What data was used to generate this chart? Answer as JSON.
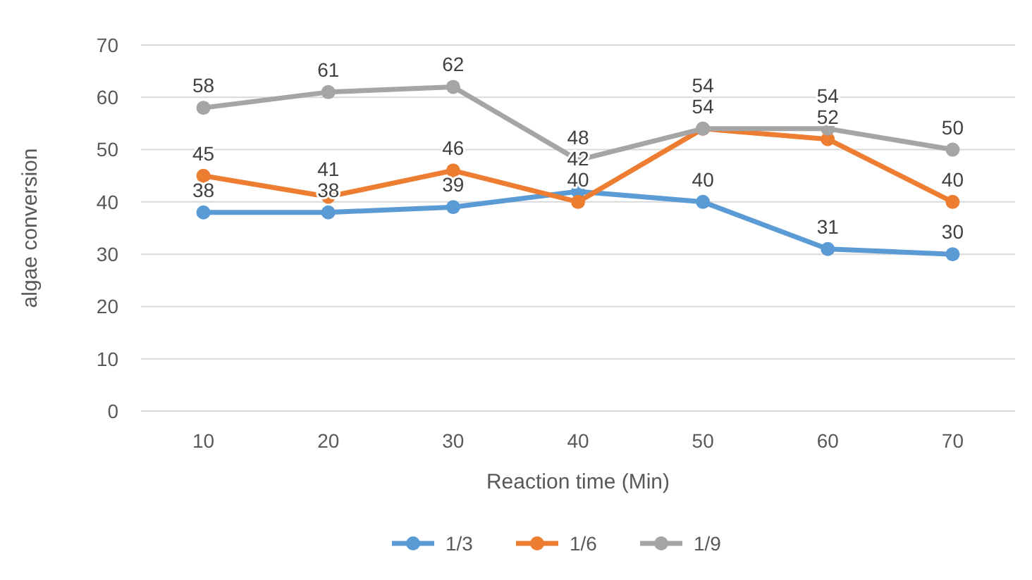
{
  "chart_data": {
    "type": "line",
    "xlabel": "Reaction time (Min)",
    "ylabel": "algae conversion",
    "categories": [
      "10",
      "20",
      "30",
      "40",
      "50",
      "60",
      "70"
    ],
    "series": [
      {
        "name": "1/3",
        "color": "#5b9bd5",
        "values": [
          38,
          38,
          39,
          42,
          40,
          31,
          30
        ]
      },
      {
        "name": "1/6",
        "color": "#ed7d31",
        "values": [
          45,
          41,
          46,
          40,
          54,
          52,
          40
        ]
      },
      {
        "name": "1/9",
        "color": "#a5a5a5",
        "values": [
          58,
          61,
          62,
          48,
          54,
          54,
          50
        ]
      }
    ],
    "ylim": [
      0,
      70
    ],
    "yticks": [
      0,
      10,
      20,
      30,
      40,
      50,
      60,
      70
    ],
    "grid": "y",
    "legend": "bottom",
    "marker": "circle",
    "line_style": "solid",
    "data_labels": true
  }
}
